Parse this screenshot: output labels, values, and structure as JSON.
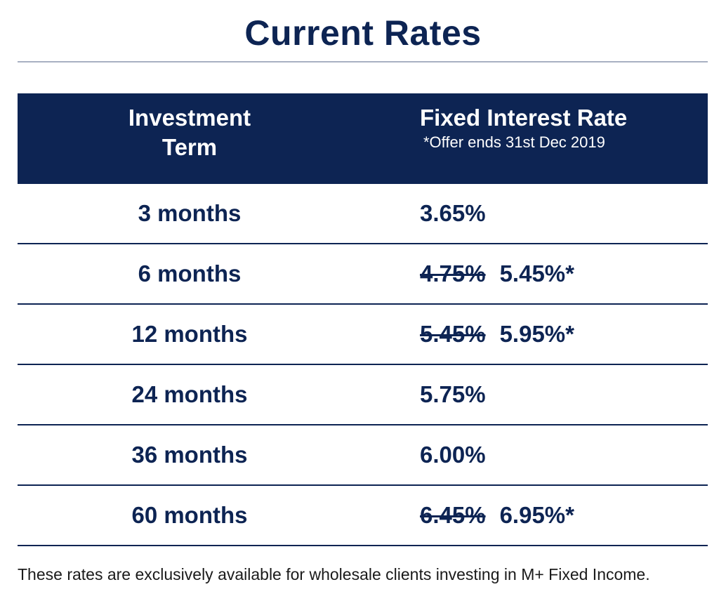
{
  "title": "Current Rates",
  "header": {
    "term": "Investment Term",
    "rate": "Fixed Interest Rate",
    "note": "*Offer ends 31st Dec 2019"
  },
  "rows": [
    {
      "term": "3 months",
      "old_rate": "",
      "rate": "3.65%"
    },
    {
      "term": "6 months",
      "old_rate": "4.75%",
      "rate": "5.45%*"
    },
    {
      "term": "12 months",
      "old_rate": "5.45%",
      "rate": "5.95%*"
    },
    {
      "term": "24 months",
      "old_rate": "",
      "rate": "5.75%"
    },
    {
      "term": "36 months",
      "old_rate": "",
      "rate": "6.00%"
    },
    {
      "term": "60 months",
      "old_rate": "6.45%",
      "rate": "6.95%*"
    }
  ],
  "footnote": "These rates are exclusively available for wholesale clients investing in M+ Fixed Income.",
  "colors": {
    "navy": "#0d2453",
    "rule": "#a8b0c2"
  }
}
